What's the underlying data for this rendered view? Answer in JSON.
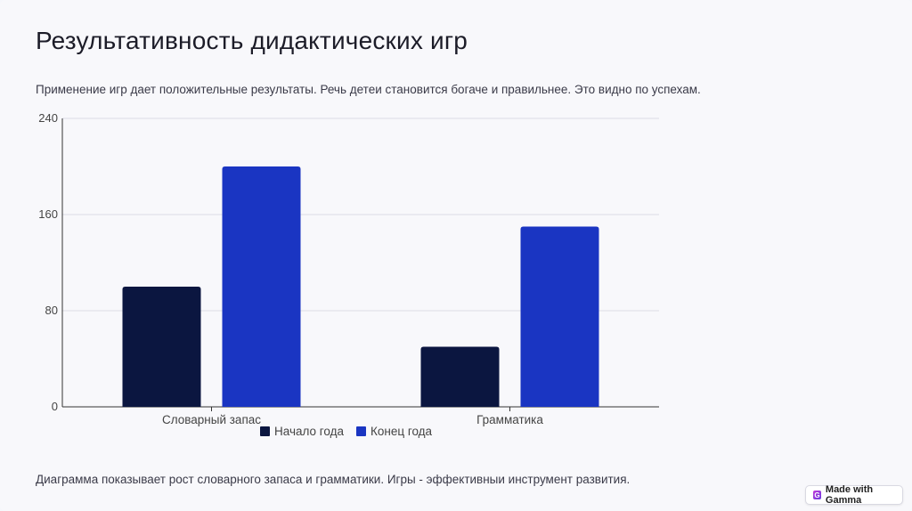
{
  "slide": {
    "title": "Результативность дидактических игр",
    "subtitle": "Применение игр дает положительные результаты. Речь детеи становится богаче и правильнее. Это видно по успехам.",
    "footer": "Диаграмма показывает рост словарного запаса и грамматики. Игры - эффективныи инструмент развития."
  },
  "badge": {
    "label": "Made with Gamma",
    "icon": "gamma-logo-icon"
  },
  "chart_data": {
    "type": "bar",
    "categories": [
      "Словарный запас",
      "Грамматика"
    ],
    "series": [
      {
        "name": "Начало года",
        "values": [
          100,
          50
        ],
        "color": "#0b1640"
      },
      {
        "name": "Конец года",
        "values": [
          200,
          150
        ],
        "color": "#1a35c2"
      }
    ],
    "ylim": [
      0,
      240
    ],
    "yticks": [
      0,
      80,
      160,
      240
    ],
    "grid": true,
    "legend": "bottom",
    "xlabel": "",
    "ylabel": ""
  }
}
